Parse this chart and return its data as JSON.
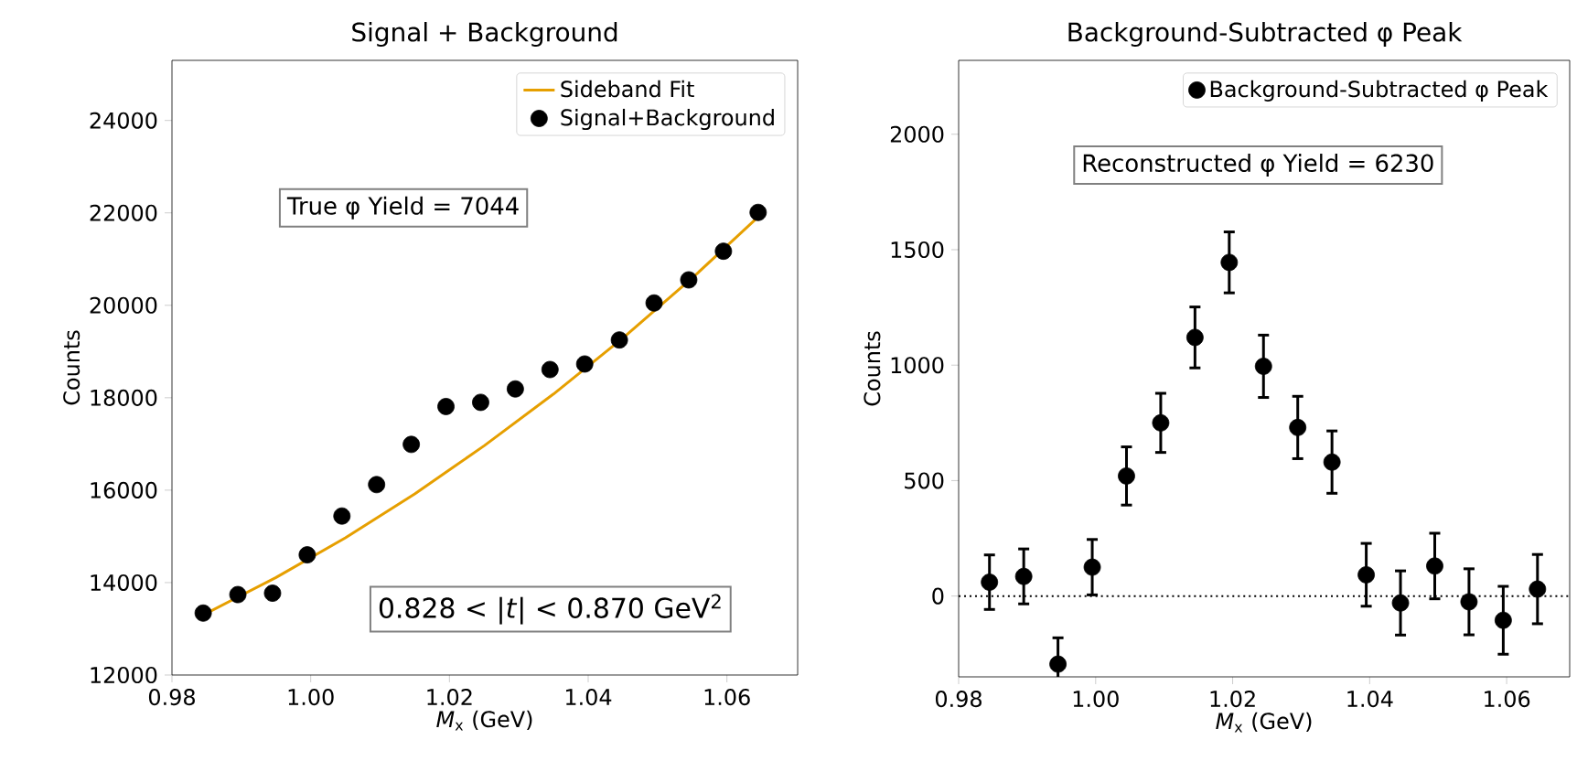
{
  "chart_data": [
    {
      "type": "scatter",
      "title": "Signal + Background",
      "xlabel": "*M*$_{x}$ (GeV)",
      "ylabel": "Counts",
      "xlim": [
        0.98,
        1.0702
      ],
      "ylim": [
        12000,
        25300
      ],
      "xticks": [
        0.98,
        {
          "value": 1,
          "label": "1.00"
        },
        1.02,
        1.04,
        1.06
      ],
      "yticks": [
        12000,
        14000,
        16000,
        18000,
        20000,
        22000,
        24000
      ],
      "series": [
        {
          "type": "line",
          "name": "Sideband Fit",
          "color": "#e69f00",
          "marker": "none",
          "x": [
            0.9845,
            0.995,
            1.005,
            1.015,
            1.025,
            1.035,
            1.045,
            1.055,
            1.0655
          ],
          "values": [
            13300,
            14110,
            14970,
            15920,
            16960,
            18080,
            19290,
            20590,
            22050
          ]
        },
        {
          "type": "scatter",
          "name": "Signal+Background",
          "color": "#000000",
          "x": [
            0.9845,
            0.9895,
            0.9945,
            0.9995,
            1.0045,
            1.0095,
            1.0145,
            1.0195,
            1.0245,
            1.0295,
            1.0345,
            1.0395,
            1.0445,
            1.0495,
            1.0545,
            1.0595,
            1.0645
          ],
          "values": [
            13340,
            13740,
            13770,
            14600,
            15440,
            16120,
            16990,
            17810,
            17900,
            18190,
            18610,
            18730,
            19250,
            20050,
            20550,
            21170,
            22010
          ]
        }
      ],
      "marker": "circle",
      "legend": "top right",
      "annotations": [
        "True φ Yield = 7044",
        "0.828 < |*t*| < 0.870 GeV$^{2}$"
      ]
    },
    {
      "type": "scatter",
      "title": "Background-Subtracted φ Peak",
      "xlabel": "*M*$_{x}$ (GeV)",
      "ylabel": "Counts",
      "xlim": [
        0.98,
        1.0692
      ],
      "ylim": [
        -350,
        2320
      ],
      "xticks": [
        0.98,
        {
          "value": 1,
          "label": "1.00"
        },
        1.02,
        1.04,
        1.06
      ],
      "yticks": [
        0,
        500,
        1000,
        1500,
        2000
      ],
      "series": [
        {
          "name": "Background-Subtracted φ Peak",
          "color": "#000000",
          "x": [
            0.9845,
            0.9895,
            0.9945,
            0.9995,
            1.0045,
            1.0095,
            1.0145,
            1.0195,
            1.0245,
            1.0295,
            1.0345,
            1.0395,
            1.0445,
            1.0495,
            1.0545,
            1.0595,
            1.0645
          ],
          "values": [
            60,
            85,
            -295,
            125,
            520,
            750,
            1120,
            1445,
            995,
            730,
            580,
            92,
            -30,
            130,
            -25,
            -105,
            30
          ],
          "errors": [
            118,
            119,
            114,
            120,
            126,
            128,
            132,
            132,
            135,
            135,
            135,
            136,
            139,
            142,
            143,
            147,
            150
          ]
        }
      ],
      "marker": "circle",
      "legend": "top right",
      "ref_lines": [
        {
          "axis": "y",
          "value": 0,
          "color": "#000000",
          "line_style": "dotted"
        }
      ],
      "annotations": [
        "Reconstructed φ Yield = 6230"
      ]
    }
  ]
}
